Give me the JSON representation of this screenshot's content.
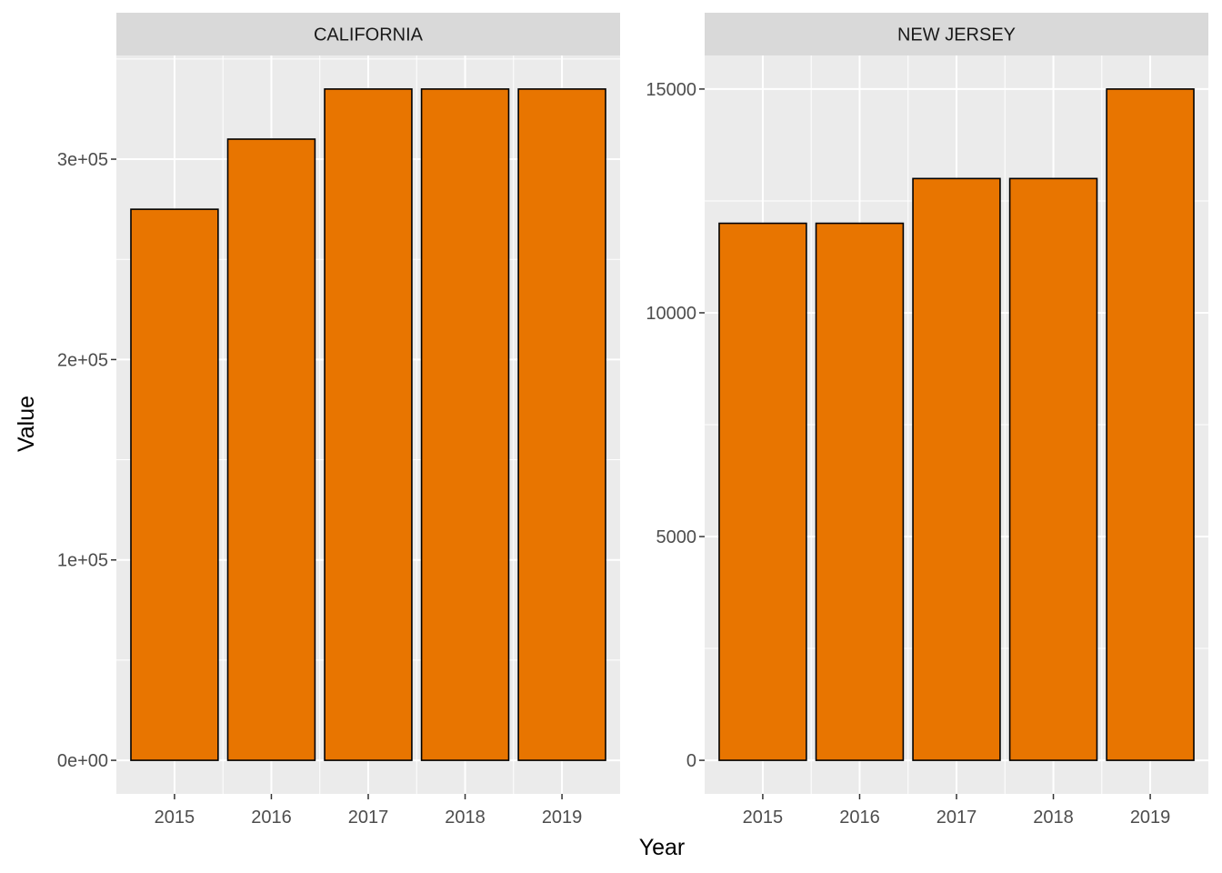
{
  "chart_data": {
    "type": "bar",
    "xlabel": "Year",
    "ylabel": "Value",
    "fill_color": "#E87500",
    "border_color": "#000000",
    "panel_background": "#EBEBEB",
    "strip_background": "#D9D9D9",
    "grid_color": "#FFFFFF",
    "grid": true,
    "panels": [
      {
        "strip": "CALIFORNIA",
        "categories": [
          "2015",
          "2016",
          "2017",
          "2018",
          "2019"
        ],
        "values": [
          275000,
          310000,
          335000,
          335000,
          335000
        ],
        "ylim": [
          -16750,
          351750
        ],
        "yticks": [
          0,
          100000,
          200000,
          300000
        ],
        "ytick_labels": [
          "0e+00",
          "1e+05",
          "2e+05",
          "3e+05"
        ]
      },
      {
        "strip": "NEW JERSEY",
        "categories": [
          "2015",
          "2016",
          "2017",
          "2018",
          "2019"
        ],
        "values": [
          12000,
          12000,
          13000,
          13000,
          15000
        ],
        "ylim": [
          -750,
          15750
        ],
        "yticks": [
          0,
          5000,
          10000,
          15000
        ],
        "ytick_labels": [
          "0",
          "5000",
          "10000",
          "15000"
        ]
      }
    ]
  }
}
